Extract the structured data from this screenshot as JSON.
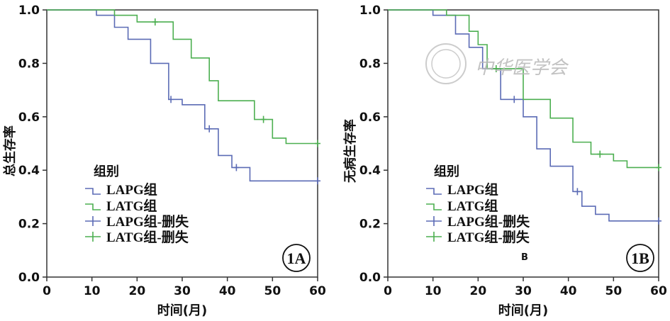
{
  "chart_data": [
    {
      "id": "A",
      "type": "line",
      "subtype": "kaplan-meier-step",
      "xlabel": "时间(月)",
      "ylabel": "总生存率",
      "xlim": [
        0,
        60
      ],
      "ylim": [
        0,
        1.0
      ],
      "xticks": [
        "0",
        "10",
        "20",
        "30",
        "40",
        "50",
        "60"
      ],
      "yticks": [
        "0.0",
        "0.2",
        "0.4",
        "0.6",
        "0.8",
        "1.0"
      ],
      "legend_title": "组别",
      "legend": [
        "LAPG组",
        "LATG组",
        "LAPG组-删失",
        "LATG组-删失"
      ],
      "panel_label": "1A",
      "series": [
        {
          "name": "LAPG组",
          "color": "#5b6bb5",
          "steps": [
            [
              0,
              1.0
            ],
            [
              11,
              0.98
            ],
            [
              15,
              0.935
            ],
            [
              18,
              0.89
            ],
            [
              23,
              0.8
            ],
            [
              27,
              0.665
            ],
            [
              30,
              0.645
            ],
            [
              35,
              0.555
            ],
            [
              38,
              0.455
            ],
            [
              41,
              0.41
            ],
            [
              45,
              0.36
            ],
            [
              60,
              0.36
            ]
          ],
          "censored": [
            [
              27.5,
              0.665
            ],
            [
              36,
              0.555
            ],
            [
              42,
              0.41
            ],
            [
              60,
              0.36
            ]
          ]
        },
        {
          "name": "LATG组",
          "color": "#4caf50",
          "steps": [
            [
              0,
              1.0
            ],
            [
              15,
              0.98
            ],
            [
              20,
              0.955
            ],
            [
              28,
              0.89
            ],
            [
              32,
              0.82
            ],
            [
              36,
              0.735
            ],
            [
              38,
              0.66
            ],
            [
              46,
              0.59
            ],
            [
              50,
              0.52
            ],
            [
              53,
              0.5
            ],
            [
              60,
              0.5
            ]
          ],
          "censored": [
            [
              24,
              0.955
            ],
            [
              48,
              0.59
            ],
            [
              60,
              0.5
            ]
          ]
        }
      ]
    },
    {
      "id": "B",
      "type": "line",
      "subtype": "kaplan-meier-step",
      "xlabel": "时间(月)",
      "ylabel": "无病生存率",
      "xlim": [
        0,
        60
      ],
      "ylim": [
        0,
        1.0
      ],
      "xticks": [
        "0",
        "10",
        "20",
        "30",
        "40",
        "50",
        "60"
      ],
      "yticks": [
        "0.0",
        "0.2",
        "0.4",
        "0.6",
        "0.8",
        "1.0"
      ],
      "legend_title": "组别",
      "legend": [
        "LAPG组",
        "LATG组",
        "LAPG组-删失",
        "LATG组-删失"
      ],
      "panel_label": "1B",
      "annotation": "B",
      "series": [
        {
          "name": "LAPG组",
          "color": "#5b6bb5",
          "steps": [
            [
              0,
              1.0
            ],
            [
              10,
              0.98
            ],
            [
              15,
              0.91
            ],
            [
              18,
              0.86
            ],
            [
              21,
              0.78
            ],
            [
              25,
              0.665
            ],
            [
              30,
              0.6
            ],
            [
              33,
              0.48
            ],
            [
              36,
              0.415
            ],
            [
              41,
              0.32
            ],
            [
              43,
              0.265
            ],
            [
              46,
              0.235
            ],
            [
              49,
              0.21
            ],
            [
              60,
              0.21
            ]
          ],
          "censored": [
            [
              28,
              0.665
            ],
            [
              42,
              0.32
            ],
            [
              60,
              0.21
            ]
          ]
        },
        {
          "name": "LATG组",
          "color": "#4caf50",
          "steps": [
            [
              0,
              1.0
            ],
            [
              13,
              0.98
            ],
            [
              18,
              0.92
            ],
            [
              20,
              0.87
            ],
            [
              22,
              0.78
            ],
            [
              30,
              0.665
            ],
            [
              36,
              0.595
            ],
            [
              41,
              0.505
            ],
            [
              45,
              0.46
            ],
            [
              50,
              0.435
            ],
            [
              53,
              0.41
            ],
            [
              60,
              0.41
            ]
          ],
          "censored": [
            [
              24,
              0.78
            ],
            [
              47,
              0.46
            ],
            [
              60,
              0.41
            ]
          ]
        }
      ]
    }
  ],
  "watermark": {
    "text": "中华医学会"
  }
}
